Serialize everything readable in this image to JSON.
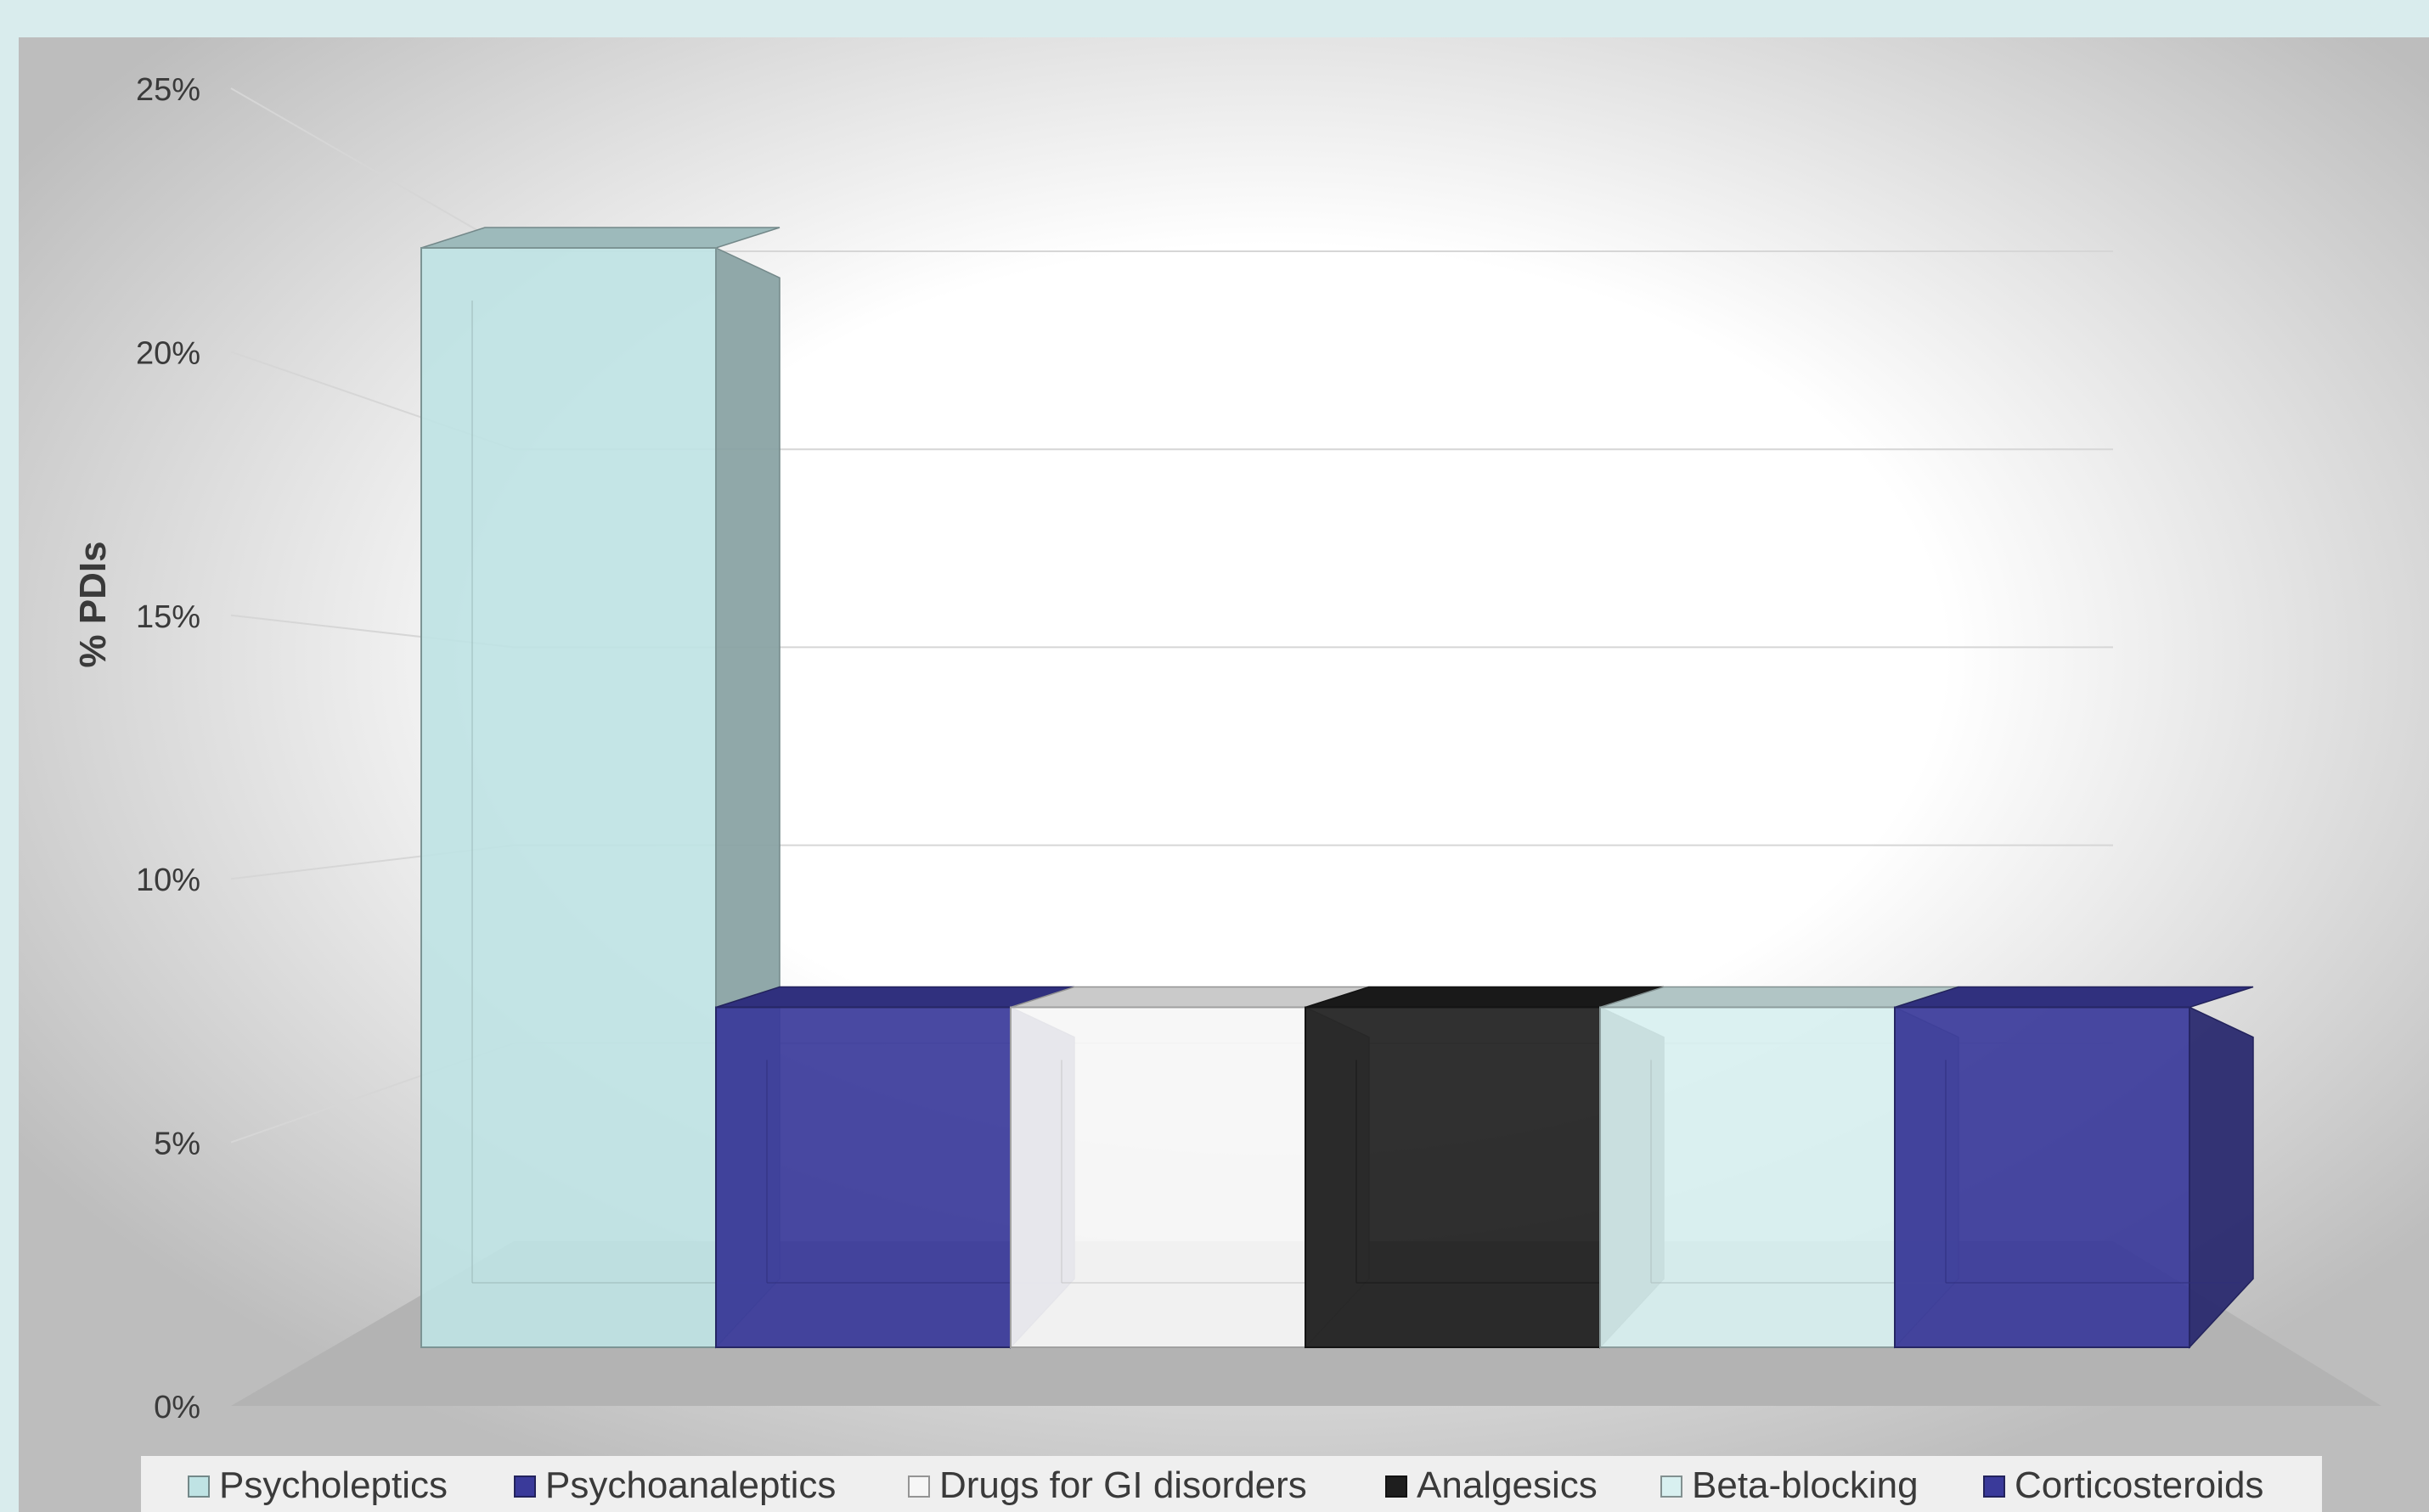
{
  "colors": {
    "page_bg": "#d9eced",
    "plot_bg_center": "#ffffff",
    "plot_bg_edge": "#bdbdbd",
    "floor": "#b3b3b3",
    "gridline": "#d6d6d6",
    "legend_bg": "#efefef",
    "text": "#3a3a3a"
  },
  "chart_data": {
    "type": "bar",
    "style": "3d-column",
    "title": "",
    "xlabel": "",
    "ylabel": "% PDIs",
    "ylim": [
      0,
      25
    ],
    "yticks": [
      "0%",
      "5%",
      "10%",
      "15%",
      "20%",
      "25%"
    ],
    "ytick_values": [
      0,
      5,
      10,
      15,
      20,
      25
    ],
    "grid": true,
    "legend_position": "bottom",
    "series": [
      {
        "name": "Psycholeptics",
        "value": 20.9,
        "color": "#bfe3e4"
      },
      {
        "name": "Psychoanaleptics",
        "value": 7.5,
        "color": "#3a3a9a"
      },
      {
        "name": "Drugs for GI disorders",
        "value": 7.5,
        "color": "#f6f6f6"
      },
      {
        "name": "Analgesics",
        "value": 7.5,
        "color": "#1e1e1e"
      },
      {
        "name": "Beta-blocking",
        "value": 7.5,
        "color": "#d8f0f0"
      },
      {
        "name": "Corticosteroids",
        "value": 7.5,
        "color": "#3a3a9a"
      }
    ]
  }
}
